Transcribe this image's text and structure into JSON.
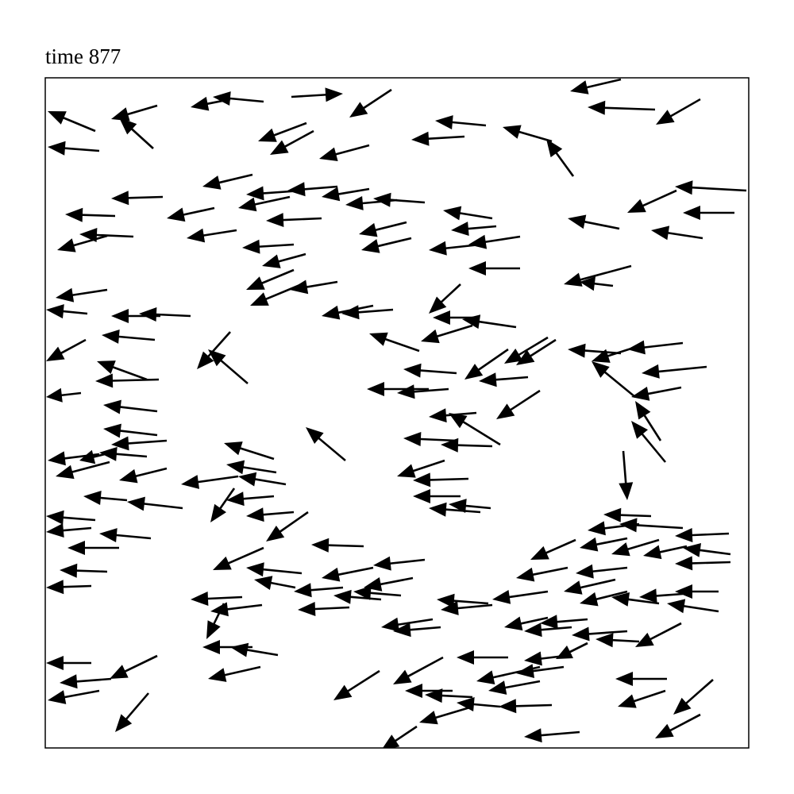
{
  "chart_data": {
    "type": "quiver",
    "title": "time 877",
    "color": "#000000",
    "xlim": [
      0,
      886
    ],
    "ylim": [
      0,
      844
    ],
    "x": [
      141,
      136,
      233,
      275,
      310,
      436,
      725,
      768,
      825,
      555,
      528,
      638,
      665,
      408,
      329,
      338,
      63,
      68,
      261,
      148,
      88,
      78,
      111,
      213,
      241,
      323,
      308,
      368,
      408,
      478,
      443,
      348,
      313,
      328,
      455,
      461,
      563,
      568,
      548,
      598,
      598,
      723,
      795,
      828,
      883,
      868,
      738,
      715,
      313,
      323,
      368,
      78,
      53,
      145,
      183,
      413,
      438,
      523,
      543,
      593,
      471,
      538,
      138,
      51,
      233,
      255,
      128,
      143,
      141,
      45,
      518,
      583,
      633,
      643,
      725,
      741,
      803,
      833,
      743,
      801,
      775,
      781,
      483,
      508,
      543,
      573,
      608,
      623,
      518,
      563,
      378,
      288,
      141,
      153,
      68,
      83,
      128,
      81,
      153,
      243,
      291,
      303,
      503,
      533,
      523,
      548,
      561,
      728,
      238,
      288,
      313,
      173,
      103,
      63,
      58,
      93,
      133,
      331,
      401,
      763,
      803,
      748,
      861,
      733,
      773,
      808,
      863,
      668,
      658,
      733,
      863,
      275,
      323,
      315,
      413,
      478,
      463,
      58,
      78,
      248,
      273,
      225,
      375,
      383,
      423,
      448,
      558,
      563,
      633,
      718,
      733,
      773,
      803,
      848,
      848,
      488,
      498,
      633,
      663,
      683,
      733,
      748,
      801,
      293,
      261,
      58,
      83,
      141,
      271,
      583,
      663,
      683,
      653,
      623,
      501,
      513,
      538,
      573,
      421,
      68,
      130,
      638,
      538,
      623,
      783,
      781,
      841,
      825,
      673,
      468
    ],
    "y": [
      809,
      755,
      817,
      814,
      820,
      829,
      842,
      804,
      817,
      784,
      770,
      764,
      720,
      759,
      787,
      777,
      777,
      752,
      722,
      694,
      670,
      645,
      644,
      680,
      652,
      702,
      694,
      707,
      704,
      687,
      690,
      667,
      634,
      622,
      662,
      642,
      667,
      657,
      634,
      644,
      604,
      654,
      702,
      642,
      702,
      674,
      607,
      582,
      602,
      584,
      587,
      577,
      547,
      544,
      544,
      557,
      552,
      584,
      542,
      530,
      500,
      532,
      514,
      514,
      524,
      459,
      464,
      464,
      424,
      447,
      472,
      502,
      517,
      514,
      497,
      504,
      510,
      480,
      442,
      454,
      387,
      360,
      452,
      452,
      422,
      382,
      467,
      450,
      387,
      380,
      362,
      364,
      394,
      387,
      370,
      372,
      367,
      360,
      352,
      342,
      347,
      332,
      362,
      339,
      317,
      297,
      302,
      374,
      327,
      317,
      297,
      302,
      312,
      287,
      277,
      252,
      264,
      297,
      254,
      292,
      277,
      282,
      270,
      264,
      262,
      254,
      244,
      262,
      227,
      227,
      234,
      252,
      220,
      202,
      227,
      237,
      214,
      204,
      222,
      190,
      180,
      182,
      202,
      177,
      187,
      192,
      182,
      180,
      197,
      212,
      197,
      182,
      194,
      197,
      172,
      162,
      152,
      164,
      152,
      162,
      147,
      134,
      157,
      117,
      127,
      107,
      87,
      116,
      102,
      114,
      117,
      132,
      102,
      102,
      114,
      72,
      64,
      52,
      97,
      72,
      69,
      54,
      52,
      84,
      87,
      72,
      86,
      42,
      20,
      27
    ],
    "u": [
      -58,
      -43,
      -50,
      -64,
      65,
      -53,
      -64,
      -85,
      -56,
      -64,
      -67,
      -62,
      -34,
      -63,
      -61,
      -55,
      -60,
      -65,
      -63,
      -65,
      -63,
      -63,
      -68,
      -60,
      -63,
      -70,
      -65,
      -63,
      -60,
      -65,
      -65,
      -70,
      -65,
      -55,
      -60,
      -63,
      -62,
      -57,
      -65,
      -65,
      -65,
      -65,
      -62,
      -65,
      -90,
      -65,
      -85,
      -42,
      -60,
      -65,
      -60,
      -65,
      -52,
      -62,
      -65,
      -65,
      -65,
      -40,
      -55,
      -68,
      -63,
      -65,
      -67,
      -50,
      -42,
      -50,
      -63,
      -80,
      -68,
      -44,
      -67,
      -55,
      -55,
      -50,
      -67,
      -53,
      -70,
      -82,
      -55,
      -63,
      -32,
      -43,
      -78,
      -65,
      -60,
      -65,
      -62,
      -55,
      -67,
      -65,
      -50,
      -63,
      -68,
      -70,
      -65,
      -40,
      -60,
      -68,
      -60,
      -72,
      -63,
      -60,
      -60,
      -70,
      -60,
      -65,
      -53,
      5,
      -30,
      -60,
      -60,
      -70,
      -55,
      -62,
      -57,
      -65,
      -65,
      -53,
      -66,
      -60,
      -80,
      -65,
      -68,
      -60,
      -60,
      -55,
      -60,
      -57,
      -65,
      -65,
      -70,
      -64,
      -70,
      -52,
      -65,
      -65,
      -62,
      -57,
      -60,
      -65,
      -65,
      -22,
      -62,
      -65,
      -60,
      -60,
      -65,
      -65,
      -70,
      -65,
      -60,
      -60,
      -55,
      -55,
      -65,
      -65,
      -60,
      -55,
      -60,
      -60,
      -70,
      -55,
      -58,
      -60,
      -63,
      -57,
      -65,
      -60,
      -66,
      -65,
      -60,
      -40,
      -60,
      -80,
      -63,
      -60,
      -60,
      -55,
      -58,
      -65,
      -42,
      -67,
      -67,
      -65,
      -65,
      -60,
      -50,
      -57,
      -70,
      -45
    ],
    "v": [
      -17,
      39,
      -10,
      6,
      4,
      -35,
      -15,
      3,
      -32,
      6,
      -4,
      18,
      47,
      -17,
      -23,
      -30,
      25,
      5,
      -15,
      -2,
      2,
      -18,
      3,
      -13,
      -10,
      -5,
      -14,
      -5,
      -10,
      5,
      -6,
      -3,
      -4,
      -15,
      -15,
      -15,
      10,
      -5,
      -7,
      -10,
      0,
      13,
      -28,
      10,
      5,
      0,
      -23,
      5,
      -25,
      -27,
      -10,
      -10,
      5,
      0,
      3,
      -13,
      -5,
      -37,
      0,
      10,
      22,
      -20,
      6,
      -27,
      -47,
      43,
      23,
      -2,
      8,
      -5,
      5,
      -38,
      -33,
      -32,
      5,
      -17,
      -8,
      -8,
      45,
      -12,
      50,
      52,
      0,
      -5,
      -5,
      40,
      -5,
      -36,
      3,
      2,
      42,
      20,
      8,
      -5,
      -8,
      -10,
      5,
      -18,
      -15,
      -10,
      10,
      10,
      -20,
      -2,
      0,
      5,
      5,
      -62,
      -43,
      -5,
      -5,
      8,
      5,
      5,
      -5,
      0,
      6,
      -37,
      2,
      2,
      5,
      -8,
      -3,
      -12,
      -18,
      -12,
      8,
      -25,
      -13,
      -7,
      -2,
      -28,
      7,
      10,
      -13,
      -7,
      -12,
      -2,
      2,
      -3,
      -8,
      -45,
      -5,
      -3,
      5,
      5,
      5,
      -6,
      -10,
      -15,
      -15,
      8,
      -4,
      0,
      10,
      -10,
      -5,
      -12,
      -5,
      -5,
      -5,
      3,
      -30,
      10,
      0,
      0,
      -5,
      -29,
      -15,
      0,
      -7,
      -20,
      -8,
      -18,
      -34,
      0,
      3,
      5,
      -37,
      -12,
      -49,
      -2,
      -20,
      -12,
      0,
      -20,
      -44,
      -30,
      -6,
      -30
    ]
  }
}
